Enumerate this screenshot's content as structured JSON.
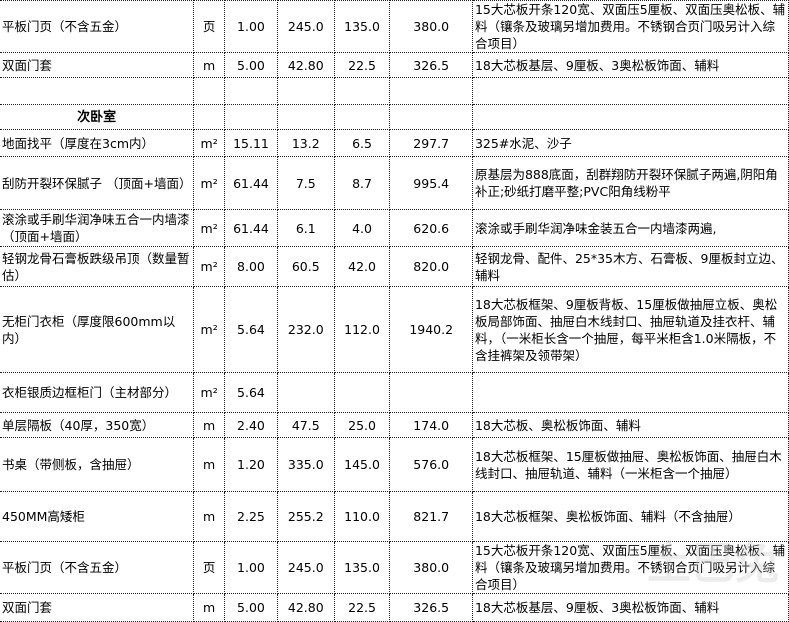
{
  "rows": [
    {
      "name": "平板门页（不含五金）",
      "unit": "页",
      "qty": "1.00",
      "material": "245.0",
      "labor": "135.0",
      "total": "380.0",
      "desc": "15大芯板开条120宽、双面压5厘板、双面压奥松板、辅料（镶条及玻璃另增加费用。不锈钢合页门吸另计入综合项目）"
    },
    {
      "name": "双面门套",
      "unit": "m",
      "qty": "5.00",
      "material": "42.80",
      "labor": "22.5",
      "total": "326.5",
      "desc": "18大芯板基层、9厘板、3奥松板饰面、辅料"
    },
    {
      "name": "",
      "unit": "",
      "qty": "",
      "material": "",
      "labor": "",
      "total": "",
      "desc": ""
    },
    {
      "section": "次卧室"
    },
    {
      "name": "地面找平（厚度在3cm内）",
      "unit": "m²",
      "qty": "15.11",
      "material": "13.2",
      "labor": "6.5",
      "total": "297.7",
      "desc": "325#水泥、沙子"
    },
    {
      "name": "刮防开裂环保腻子 （顶面+墙面）",
      "unit": "m²",
      "qty": "61.44",
      "material": "7.5",
      "labor": "8.7",
      "total": "995.4",
      "desc": "原基层为888底面，刮群翔防开裂环保腻子两遍,阴阳角补正;砂纸打磨平整;PVC阳角线粉平"
    },
    {
      "name": "滚涂或手刷华润净味五合一内墙漆 （顶面+墙面）",
      "unit": "m²",
      "qty": "61.44",
      "material": "6.1",
      "labor": "4.0",
      "total": "620.6",
      "desc": "滚涂或手刷华润净味金装五合一内墙漆两遍,"
    },
    {
      "name": "轻钢龙骨石膏板跌级吊顶（数量暂估）",
      "unit": "m²",
      "qty": "8.00",
      "material": "60.5",
      "labor": "42.0",
      "total": "820.0",
      "desc": "轻钢龙骨、配件、25*35木方、石膏板、9厘板封立边、辅料"
    },
    {
      "name": "无柜门衣柜（厚度限600mm以内）",
      "unit": "m²",
      "qty": "5.64",
      "material": "232.0",
      "labor": "112.0",
      "total": "1940.2",
      "desc": "18大芯板框架、9厘板背板、15厘板做抽屉立板、奥松板局部饰面、抽屉白木线封口、抽屉轨道及挂衣杆、辅料，（一米柜长含一个抽屉，每平米柜含1.0米隔板，不含挂裤架及领带架）"
    },
    {
      "name": "衣柜银质边框柜门（主材部分）",
      "unit": "m²",
      "qty": "5.64",
      "material": "",
      "labor": "",
      "total": "",
      "desc": ""
    },
    {
      "name": "单层隔板（40厚，350宽）",
      "unit": "m",
      "qty": "2.40",
      "material": "47.5",
      "labor": "25.0",
      "total": "174.0",
      "desc": "18大芯板、奥松板饰面、辅料"
    },
    {
      "name": "书桌（带侧板，含抽屉）",
      "unit": "m",
      "qty": "1.20",
      "material": "335.0",
      "labor": "145.0",
      "total": "576.0",
      "desc": "18大芯板框架、15厘板做抽屉、奥松板饰面、抽屉白木线封口、抽屉轨道、辅料（一米柜含一个抽屉）"
    },
    {
      "name": "450MM高矮柜",
      "unit": "m",
      "qty": "2.25",
      "material": "255.2",
      "labor": "110.0",
      "total": "821.7",
      "desc": "18大芯板框架、奥松板饰面、辅料（不含抽屉）"
    },
    {
      "name": "平板门页（不含五金）",
      "unit": "页",
      "qty": "1.00",
      "material": "245.0",
      "labor": "135.0",
      "total": "380.0",
      "desc": "15大芯板开条120宽、双面压5厘板、双面压奥松板、辅料（镶条及玻璃另增加费用。不锈钢合页门吸另计入综合项目）"
    },
    {
      "name": "双面门套",
      "unit": "m",
      "qty": "5.00",
      "material": "42.80",
      "labor": "22.5",
      "total": "326.5",
      "desc": "18大芯板基层、9厘板、3奥松板饰面、辅料"
    }
  ]
}
